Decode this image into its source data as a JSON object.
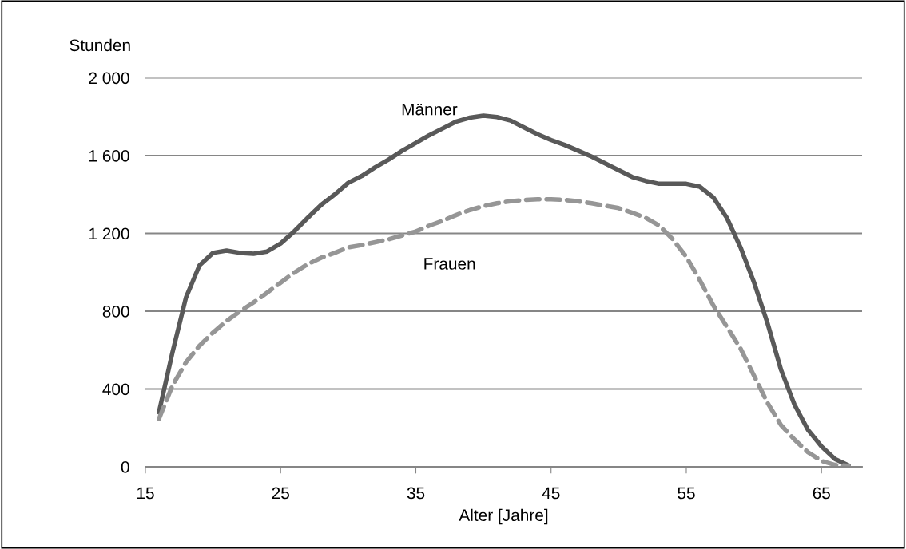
{
  "chart_data": {
    "type": "line",
    "xlabel": "Alter [Jahre]",
    "ylabel": "Stunden",
    "x": [
      16,
      17,
      18,
      19,
      20,
      21,
      22,
      23,
      24,
      25,
      26,
      27,
      28,
      29,
      30,
      31,
      32,
      33,
      34,
      35,
      36,
      37,
      38,
      39,
      40,
      41,
      42,
      43,
      44,
      45,
      46,
      47,
      48,
      49,
      50,
      51,
      52,
      53,
      54,
      55,
      56,
      57,
      58,
      59,
      60,
      61,
      62,
      63,
      64,
      65,
      66,
      67
    ],
    "series": [
      {
        "name": "Männer",
        "color": "#595959",
        "line_style": "solid",
        "values": [
          280,
          588,
          870,
          1036,
          1100,
          1112,
          1100,
          1095,
          1107,
          1148,
          1210,
          1280,
          1347,
          1400,
          1460,
          1495,
          1540,
          1580,
          1625,
          1665,
          1705,
          1740,
          1775,
          1795,
          1805,
          1798,
          1780,
          1745,
          1710,
          1680,
          1655,
          1625,
          1595,
          1560,
          1525,
          1490,
          1470,
          1455,
          1455,
          1455,
          1440,
          1385,
          1280,
          1130,
          950,
          740,
          500,
          320,
          190,
          105,
          40,
          7
        ]
      },
      {
        "name": "Frauen",
        "color": "#969696",
        "line_style": "dashed",
        "values": [
          246,
          418,
          537,
          623,
          690,
          750,
          800,
          845,
          895,
          947,
          998,
          1042,
          1075,
          1100,
          1128,
          1140,
          1155,
          1170,
          1190,
          1210,
          1240,
          1265,
          1295,
          1320,
          1340,
          1355,
          1365,
          1372,
          1375,
          1375,
          1372,
          1365,
          1355,
          1342,
          1330,
          1306,
          1280,
          1240,
          1170,
          1080,
          960,
          830,
          720,
          610,
          470,
          330,
          215,
          140,
          75,
          30,
          10,
          5
        ]
      }
    ],
    "xlim": [
      15,
      68
    ],
    "xticks": [
      15,
      25,
      35,
      45,
      55,
      65
    ],
    "ylim": [
      0,
      2000
    ],
    "yticks": [
      0,
      {
        "value": 400,
        "label": "400"
      },
      {
        "value": 800,
        "label": "800"
      },
      {
        "value": 1200,
        "label": "1 200"
      },
      {
        "value": 1600,
        "label": "1 600"
      },
      {
        "value": 2000,
        "label": "2 000"
      }
    ],
    "grid": "y",
    "legend": false
  }
}
